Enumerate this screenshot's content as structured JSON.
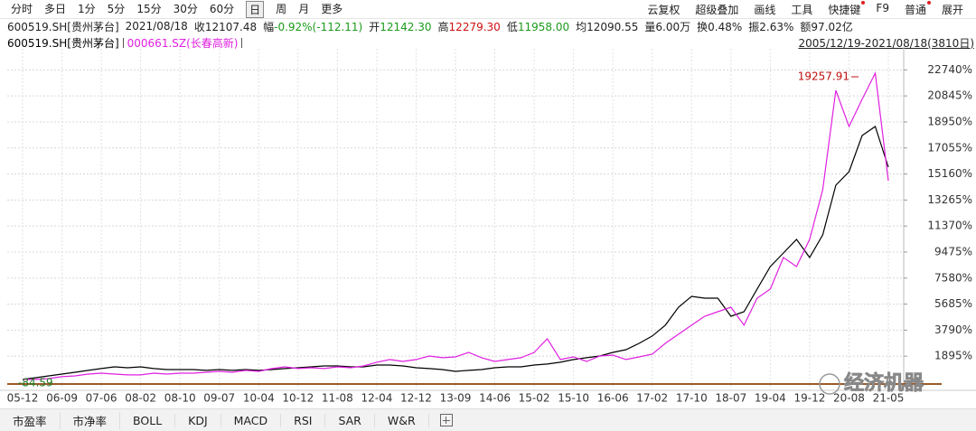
{
  "toolbar": {
    "periods": [
      "分时",
      "多日",
      "1分",
      "5分",
      "15分",
      "30分",
      "60分",
      "日",
      "周",
      "月",
      "更多"
    ],
    "selected": 7,
    "tools": [
      "云复权",
      "超级叠加",
      "画线",
      "工具",
      "快捷键",
      "F9",
      "普通",
      "展开"
    ]
  },
  "info": {
    "code": "600519.SH[贵州茅台]",
    "date": "2021/08/18",
    "fields": [
      {
        "label": "收",
        "value": "12107.48",
        "color": "#222222"
      },
      {
        "label": "幅",
        "value": "-0.92%(-112.11)",
        "color": "#1a9a1a"
      },
      {
        "label": "开",
        "value": "12142.30",
        "color": "#1a9a1a"
      },
      {
        "label": "高",
        "value": "12279.30",
        "color": "#d01010"
      },
      {
        "label": "低",
        "value": "11958.00",
        "color": "#1a9a1a"
      },
      {
        "label": "均",
        "value": "12090.55",
        "color": "#222222"
      },
      {
        "label": "量",
        "value": "6.00万",
        "color": "#222222"
      },
      {
        "label": "换",
        "value": "0.48%",
        "color": "#222222"
      },
      {
        "label": "振",
        "value": "2.63%",
        "color": "#222222"
      },
      {
        "label": "额",
        "value": "97.02亿",
        "color": "#222222"
      }
    ]
  },
  "range": "2005/12/19-2021/08/18(3810日)",
  "chart_data": {
    "type": "line",
    "categories": [
      "05-12",
      null,
      null,
      "06-09",
      null,
      null,
      "07-06",
      null,
      null,
      "08-02",
      null,
      null,
      "08-10",
      null,
      null,
      "09-07",
      null,
      null,
      "10-04",
      null,
      null,
      "10-12",
      null,
      null,
      "11-08",
      null,
      null,
      "12-04",
      null,
      null,
      "12-12",
      null,
      null,
      "13-09",
      null,
      null,
      "14-06",
      null,
      null,
      "15-02",
      null,
      null,
      "15-10",
      null,
      null,
      "16-06",
      null,
      null,
      "17-02",
      null,
      null,
      "17-10",
      null,
      null,
      "18-07",
      null,
      null,
      "19-04",
      null,
      null,
      "19-12",
      null,
      null,
      "20-08",
      null,
      null,
      "21-05"
    ],
    "series": [
      {
        "name": "600519.SH[贵州茅台]",
        "color": "#000000",
        "values": [
          200,
          330,
          460,
          590,
          720,
          860,
          990,
          1120,
          1050,
          1120,
          990,
          920,
          920,
          920,
          860,
          920,
          860,
          920,
          860,
          920,
          990,
          1050,
          1120,
          1180,
          1180,
          1120,
          1120,
          1250,
          1250,
          1180,
          1050,
          990,
          920,
          790,
          860,
          920,
          1050,
          1120,
          1120,
          1250,
          1320,
          1450,
          1650,
          1780,
          1910,
          2170,
          2370,
          2830,
          3360,
          4150,
          5460,
          6250,
          6120,
          6120,
          4800,
          5130,
          6780,
          8420,
          9410,
          10400,
          9080,
          10730,
          14340,
          15330,
          17960,
          18620,
          15660
        ]
      },
      {
        "name": "000661.SZ(长春高新)",
        "color": "#e020e0",
        "values": [
          200,
          200,
          260,
          400,
          460,
          590,
          660,
          590,
          530,
          530,
          660,
          590,
          660,
          660,
          720,
          790,
          720,
          860,
          790,
          990,
          1120,
          990,
          1050,
          990,
          1120,
          1050,
          1180,
          1450,
          1650,
          1510,
          1650,
          1910,
          1780,
          1840,
          2170,
          1780,
          1510,
          1650,
          1780,
          2170,
          3160,
          1650,
          1840,
          1510,
          1910,
          1970,
          1650,
          1840,
          2040,
          2830,
          3490,
          4150,
          4800,
          5130,
          5460,
          4150,
          6120,
          6780,
          9080,
          8420,
          10400,
          14020,
          21250,
          18620,
          20600,
          22500,
          14670
        ]
      }
    ],
    "ylim": [
      -330,
      23750
    ],
    "yticks": [
      {
        "value": 1895,
        "label": "1895%"
      },
      {
        "value": 3790,
        "label": "3790%"
      },
      {
        "value": 5685,
        "label": "5685%"
      },
      {
        "value": 7580,
        "label": "7580%"
      },
      {
        "value": 9475,
        "label": "9475%"
      },
      {
        "value": 11370,
        "label": "11370%"
      },
      {
        "value": 13265,
        "label": "13265%"
      },
      {
        "value": 15160,
        "label": "15160%"
      },
      {
        "value": 17055,
        "label": "17055%"
      },
      {
        "value": 18950,
        "label": "18950%"
      },
      {
        "value": 20845,
        "label": "20845%"
      },
      {
        "value": 22740,
        "label": "22740%"
      }
    ],
    "grid": true,
    "annotations": {
      "high": "19257.91",
      "low": "-84.59"
    }
  },
  "tabs": [
    "市盈率",
    "市净率",
    "BOLL",
    "KDJ",
    "MACD",
    "RSI",
    "SAR",
    "W&R"
  ],
  "watermark": "经济机器"
}
